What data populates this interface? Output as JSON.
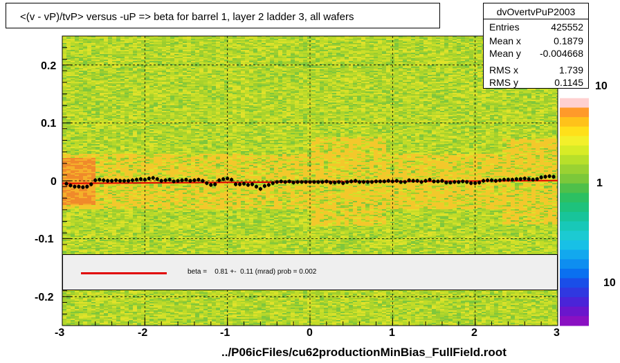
{
  "title": "<(v - vP)/tvP> versus  -uP => beta for barrel 1, layer 2 ladder 3, all wafers",
  "stats": {
    "name": "dvOvertvPuP2003",
    "rows": [
      {
        "key": "Entries",
        "value": "425552"
      },
      {
        "key": "Mean x",
        "value": "0.1879"
      },
      {
        "key": "Mean y",
        "value": "-0.004668"
      },
      {
        "key": "RMS x",
        "value": "1.739"
      },
      {
        "key": "RMS y",
        "value": "0.1145"
      }
    ]
  },
  "fit_text": "beta =    0.81 +-  0.11 (mrad) prob = 0.002",
  "x_caption": "../P06icFiles/cu62productionMinBias_FullField.root",
  "colors": {
    "fit_line": "#e00000",
    "profile_points": "#000000",
    "fit_box_bg": "#efefef"
  },
  "z_axis_labels": [
    "10",
    "1",
    "10"
  ],
  "chart_data": {
    "type": "heatmap",
    "title": "<(v - vP)/tvP> versus  -uP => beta for barrel 1, layer 2 ladder 3, all wafers",
    "xlim": [
      -3,
      3
    ],
    "ylim": [
      -0.25,
      0.25
    ],
    "x_ticks": [
      "-3",
      "-2",
      "-1",
      "0",
      "1",
      "2",
      "3"
    ],
    "y_ticks": [
      "-0.2",
      "-0.1",
      "0",
      "0.1",
      "0.2"
    ],
    "x_tick_values": [
      -3,
      -2,
      -1,
      0,
      1,
      2,
      3
    ],
    "y_tick_values": [
      -0.2,
      -0.1,
      0,
      0.1,
      0.2
    ],
    "grid": true,
    "z_scale": "log",
    "profile": {
      "x": [
        -2.95,
        -2.9,
        -2.85,
        -2.8,
        -2.75,
        -2.7,
        -2.65,
        -2.6,
        -2.55,
        -2.5,
        -2.45,
        -2.4,
        -2.35,
        -2.3,
        -2.25,
        -2.2,
        -2.15,
        -2.1,
        -2.05,
        -2.0,
        -1.95,
        -1.9,
        -1.85,
        -1.8,
        -1.75,
        -1.7,
        -1.65,
        -1.6,
        -1.55,
        -1.5,
        -1.45,
        -1.4,
        -1.35,
        -1.3,
        -1.25,
        -1.2,
        -1.15,
        -1.1,
        -1.05,
        -1.0,
        -0.95,
        -0.9,
        -0.85,
        -0.8,
        -0.75,
        -0.7,
        -0.65,
        -0.6,
        -0.55,
        -0.5,
        -0.45,
        -0.4,
        -0.35,
        -0.3,
        -0.25,
        -0.2,
        -0.15,
        -0.1,
        -0.05,
        0.0,
        0.05,
        0.1,
        0.15,
        0.2,
        0.25,
        0.3,
        0.35,
        0.4,
        0.45,
        0.5,
        0.55,
        0.6,
        0.65,
        0.7,
        0.75,
        0.8,
        0.85,
        0.9,
        0.95,
        1.0,
        1.05,
        1.1,
        1.15,
        1.2,
        1.25,
        1.3,
        1.35,
        1.4,
        1.45,
        1.5,
        1.55,
        1.6,
        1.65,
        1.7,
        1.75,
        1.8,
        1.85,
        1.9,
        1.95,
        2.0,
        2.05,
        2.1,
        2.15,
        2.2,
        2.25,
        2.3,
        2.35,
        2.4,
        2.45,
        2.5,
        2.55,
        2.6,
        2.65,
        2.7,
        2.75,
        2.8,
        2.85,
        2.9,
        2.95
      ],
      "y": [
        -0.005,
        -0.008,
        -0.01,
        -0.01,
        -0.011,
        -0.01,
        -0.006,
        0.001,
        0.002,
        0.001,
        0.0,
        0.0,
        0.001,
        0.0,
        0.0,
        0.0,
        0.001,
        0.002,
        0.003,
        0.002,
        0.004,
        0.005,
        0.003,
        0.0,
        0.001,
        0.002,
        -0.001,
        0.0,
        0.001,
        0.002,
        0.0,
        0.001,
        0.002,
        0.0,
        -0.004,
        -0.007,
        -0.006,
        0.001,
        0.003,
        0.004,
        0.002,
        -0.006,
        -0.006,
        -0.005,
        -0.007,
        -0.006,
        -0.01,
        -0.014,
        -0.009,
        -0.007,
        -0.004,
        -0.002,
        -0.001,
        -0.002,
        -0.001,
        -0.003,
        -0.002,
        -0.002,
        -0.002,
        -0.002,
        -0.002,
        -0.002,
        -0.002,
        -0.001,
        -0.003,
        -0.003,
        -0.002,
        -0.004,
        -0.002,
        -0.001,
        0.0,
        -0.002,
        -0.002,
        -0.002,
        -0.002,
        -0.001,
        -0.001,
        -0.001,
        0.0,
        -0.001,
        0.0,
        -0.002,
        -0.002,
        0.001,
        0.0,
        0.0,
        -0.002,
        0.0,
        0.002,
        -0.001,
        -0.001,
        0.0,
        -0.003,
        -0.003,
        -0.002,
        -0.002,
        -0.001,
        -0.002,
        -0.004,
        -0.004,
        -0.003,
        0.0,
        0.001,
        0.001,
        0.0,
        0.001,
        0.002,
        0.002,
        0.002,
        0.003,
        0.003,
        0.004,
        0.003,
        0.002,
        0.003,
        0.006,
        0.007,
        0.008,
        0.007
      ]
    },
    "fit": {
      "slope_per_unit_x": 0.00081,
      "intercept": -0.002
    }
  }
}
